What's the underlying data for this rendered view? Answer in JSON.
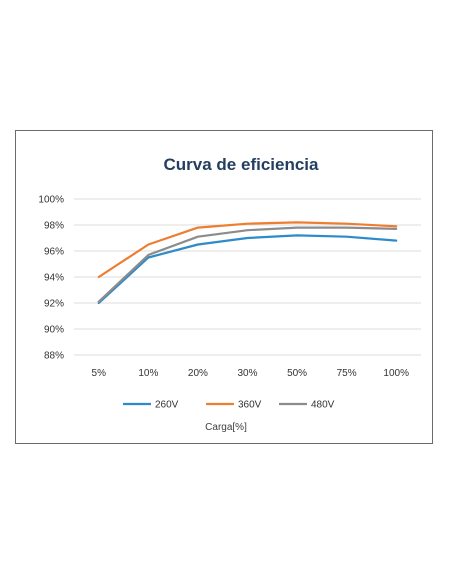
{
  "chart_data": {
    "type": "line",
    "title": "Curva de eficiencia",
    "xlabel": "Carga[%]",
    "ylabel": "",
    "categories": [
      "5%",
      "10%",
      "20%",
      "30%",
      "50%",
      "75%",
      "100%"
    ],
    "y_ticks": [
      "88%",
      "90%",
      "92%",
      "94%",
      "96%",
      "98%",
      "100%"
    ],
    "ylim": [
      88,
      100
    ],
    "grid": true,
    "legend": "bottom",
    "series": [
      {
        "name": "260V",
        "color": "#2e8bc9",
        "values": [
          92.0,
          95.5,
          96.5,
          97.0,
          97.2,
          97.1,
          96.8
        ]
      },
      {
        "name": "360V",
        "color": "#ed7d31",
        "values": [
          94.0,
          96.5,
          97.8,
          98.1,
          98.2,
          98.1,
          97.9
        ]
      },
      {
        "name": "480V",
        "color": "#8c8c8c",
        "values": [
          92.1,
          95.7,
          97.1,
          97.6,
          97.8,
          97.8,
          97.7
        ]
      }
    ]
  }
}
